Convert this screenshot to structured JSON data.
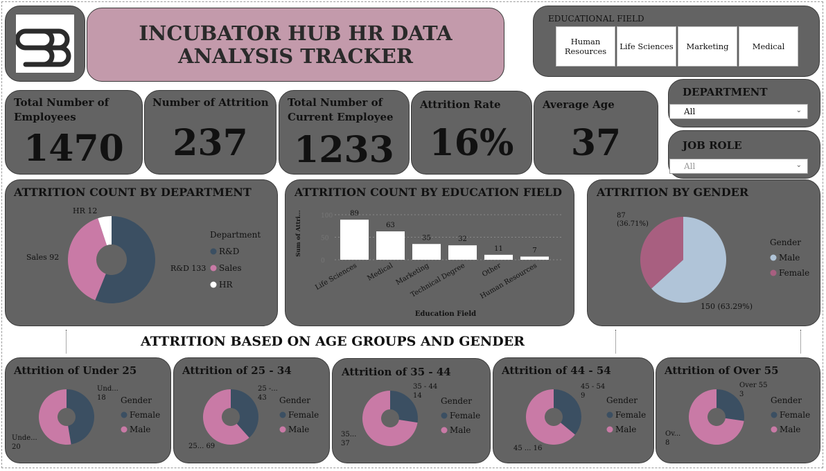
{
  "header": {
    "title": "INCUBATOR HUB HR DATA ANALYSIS TRACKER"
  },
  "education_slicer": {
    "title": "EDUCATIONAL FIELD",
    "tiles": [
      "Human Resources",
      "Life Sciences",
      "Marketing",
      "Medical"
    ]
  },
  "department_slicer": {
    "label": "DEPARTMENT",
    "value": "All"
  },
  "jobrole_slicer": {
    "label": "JOB ROLE",
    "value": "All"
  },
  "kpis": {
    "total_employees": {
      "label": "Total Number of Employees",
      "value": "1470"
    },
    "attrition": {
      "label": "Number of Attrition",
      "value": "237"
    },
    "current_employees": {
      "label": "Total Number of Current Employee",
      "value": "1233"
    },
    "attrition_rate": {
      "label": "Attrition Rate",
      "value": "16%"
    },
    "average_age": {
      "label": "Average Age",
      "value": "37"
    }
  },
  "colors": {
    "card": "#636363",
    "rnd": "#3b4f62",
    "sales": "#c97aa6",
    "hr": "#ffffff",
    "male_gender_chart": "#b0c4d8",
    "female_gender_chart": "#a85f80"
  },
  "section_title": "ATTRITION BASED ON AGE GROUPS AND GENDER",
  "chart_data": [
    {
      "id": "dept",
      "type": "pie",
      "title": "ATTRITION COUNT BY DEPARTMENT",
      "legend_title": "Department",
      "categories": [
        "R&D",
        "Sales",
        "HR"
      ],
      "values": [
        133,
        92,
        12
      ],
      "slice_labels": [
        "R&D 133",
        "Sales 92",
        "HR 12"
      ],
      "legend": [
        "R&D",
        "Sales",
        "HR"
      ],
      "colors": [
        "#3b4f62",
        "#c97aa6",
        "#ffffff"
      ],
      "legend_position": "right"
    },
    {
      "id": "edu",
      "type": "bar",
      "title": "ATTRITION COUNT BY EDUCATION FIELD",
      "xlabel": "Education Field",
      "ylabel": "Sum of Attri...",
      "categories": [
        "Life Sciences",
        "Medical",
        "Marketing",
        "Technical Degree",
        "Other",
        "Human Resources"
      ],
      "values": [
        89,
        63,
        35,
        32,
        11,
        7
      ],
      "y_ticks": [
        "0",
        "50",
        "100"
      ],
      "ylim": [
        0,
        100
      ],
      "grid": true
    },
    {
      "id": "gender",
      "type": "pie",
      "title": "ATTRITION BY GENDER",
      "legend_title": "Gender",
      "categories": [
        "Male",
        "Female"
      ],
      "values": [
        150,
        87
      ],
      "slice_labels": [
        "150 (63.29%)",
        "87 (36.71%)"
      ],
      "legend": [
        "Male",
        "Female"
      ],
      "colors": [
        "#b0c4d8",
        "#a85f80"
      ],
      "legend_position": "right"
    },
    {
      "id": "age1",
      "type": "pie",
      "title": "Attrition of Under 25",
      "legend_title": "Gender",
      "legend": [
        "Female",
        "Male"
      ],
      "values": [
        18,
        20
      ],
      "slice_labels": [
        "Und...\n18",
        "Unde...\n20"
      ]
    },
    {
      "id": "age2",
      "type": "pie",
      "title": "Attrition of 25 - 34",
      "legend_title": "Gender",
      "legend": [
        "Female",
        "Male"
      ],
      "values": [
        43,
        69
      ],
      "slice_labels": [
        "25 -...\n43",
        "25... 69"
      ]
    },
    {
      "id": "age3",
      "type": "pie",
      "title": "Attrition of 35 - 44",
      "legend_title": "Gender",
      "legend": [
        "Female",
        "Male"
      ],
      "values": [
        14,
        37
      ],
      "slice_labels": [
        "35 - 44\n14",
        "35...\n37"
      ]
    },
    {
      "id": "age4",
      "type": "pie",
      "title": "Attrition of 44 - 54",
      "legend_title": "Gender",
      "legend": [
        "Female",
        "Male"
      ],
      "values": [
        9,
        16
      ],
      "slice_labels": [
        "45 - 54\n9",
        "45 ... 16"
      ]
    },
    {
      "id": "age5",
      "type": "pie",
      "title": "Attrition of Over 55",
      "legend_title": "Gender",
      "legend": [
        "Female",
        "Male"
      ],
      "values": [
        3,
        8
      ],
      "slice_labels": [
        "Over 55\n3",
        "Ov...\n8"
      ]
    }
  ]
}
